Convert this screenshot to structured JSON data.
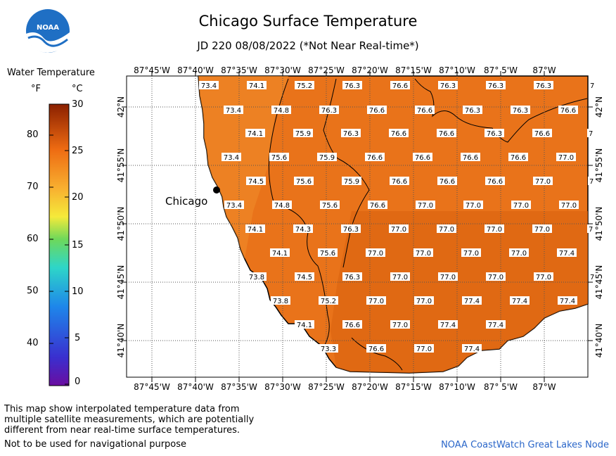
{
  "header": {
    "title": "Chicago Surface Temperature",
    "subtitle": "JD 220 08/08/2022 (*Not Near Real-time*)",
    "logo_text": "NOAA"
  },
  "legend": {
    "title": "Water Temperature",
    "unit_f": "°F",
    "unit_c": "°C",
    "f_ticks": [
      "80",
      "70",
      "60",
      "50",
      "40"
    ],
    "c_ticks": [
      "30",
      "25",
      "20",
      "15",
      "10",
      "5",
      "0"
    ]
  },
  "map": {
    "lon_labels": [
      "87°45'W",
      "87°40'W",
      "87°35'W",
      "87°30'W",
      "87°25'W",
      "87°20'W",
      "87°15'W",
      "87°10'W",
      "87° 5'W",
      "87°W"
    ],
    "lat_labels": [
      "42°N",
      "41°55'N",
      "41°50'N",
      "41°45'N",
      "41°40'N"
    ],
    "city_label": "Chicago",
    "colors": {
      "lake": "#e9731a",
      "land": "#ffffff",
      "lake_dark": "#dc6410",
      "grid": "#555555"
    },
    "values": [
      [
        "73.4",
        "74.1",
        "75.2",
        "76.3",
        "76.6",
        "76.3",
        "76.3",
        "76.3",
        "7"
      ],
      [
        "73.4",
        "74.8",
        "76.3",
        "76.6",
        "76.6",
        "76.3",
        "76.3",
        "76.6"
      ],
      [
        "74.1",
        "75.9",
        "76.3",
        "76.6",
        "76.6",
        "76.3",
        "76.6",
        "7"
      ],
      [
        "73.4",
        "75.6",
        "75.9",
        "76.6",
        "76.6",
        "76.6",
        "76.6",
        "77.0"
      ],
      [
        "74.5",
        "75.6",
        "75.9",
        "76.6",
        "76.6",
        "76.6",
        "77.0",
        "7"
      ],
      [
        "73.4",
        "74.8",
        "75.6",
        "76.6",
        "77.0",
        "77.0",
        "77.0",
        "77.0"
      ],
      [
        "74.1",
        "74.3",
        "76.3",
        "77.0",
        "77.0",
        "77.0",
        "77.0",
        "7"
      ],
      [
        "74.1",
        "75.6",
        "77.0",
        "77.0",
        "77.0",
        "77.0",
        "77.4"
      ],
      [
        "73.8",
        "74.5",
        "76.3",
        "77.0",
        "77.0",
        "77.0",
        "77.0",
        "7"
      ],
      [
        "73.8",
        "75.2",
        "77.0",
        "77.0",
        "77.4",
        "77.4",
        "77.4"
      ],
      [
        "74.1",
        "76.6",
        "77.0",
        "77.4",
        "77.4"
      ],
      [
        "73.3",
        "76.6",
        "77.0",
        "77.4"
      ]
    ]
  },
  "footer": {
    "note_lines": [
      "This map show interpolated temperature data from",
      "multiple satellite measurements, which are potentially",
      "different from near real-time surface temperatures."
    ],
    "nav_note": "Not to be used for navigational purpose",
    "credit": "NOAA CoastWatch Great Lakes Node"
  }
}
